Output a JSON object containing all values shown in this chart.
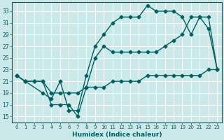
{
  "xlabel": "Humidex (Indice chaleur)",
  "xlim": [
    -0.5,
    23.5
  ],
  "ylim": [
    14,
    34.5
  ],
  "yticks": [
    15,
    17,
    19,
    21,
    23,
    25,
    27,
    29,
    31,
    33
  ],
  "xticks": [
    0,
    1,
    2,
    3,
    4,
    5,
    6,
    7,
    8,
    9,
    10,
    11,
    12,
    13,
    14,
    15,
    16,
    17,
    18,
    19,
    20,
    21,
    22,
    23
  ],
  "bg_color": "#cce9e9",
  "line_color": "#006060",
  "line1_x": [
    0,
    1,
    3,
    4,
    5,
    6,
    7,
    8,
    9,
    10,
    11,
    12,
    13,
    14,
    15,
    16,
    17,
    18,
    19,
    20,
    21,
    22,
    23
  ],
  "line1_y": [
    22,
    21,
    19,
    18,
    21,
    16,
    16,
    22,
    27,
    29,
    31,
    32,
    32,
    32,
    34,
    33,
    33,
    33,
    32,
    29,
    32,
    30,
    23
  ],
  "line2_x": [
    0,
    1,
    2,
    3,
    4,
    5,
    6,
    7,
    8,
    9,
    10,
    11,
    12,
    13,
    14,
    15,
    16,
    17,
    18,
    19,
    20,
    21,
    22,
    23
  ],
  "line2_y": [
    22,
    21,
    21,
    21,
    17,
    17,
    17,
    15,
    20,
    25,
    27,
    26,
    26,
    26,
    26,
    26,
    26,
    27,
    28,
    29,
    32,
    32,
    32,
    23
  ],
  "line3_x": [
    0,
    1,
    2,
    3,
    4,
    5,
    6,
    7,
    8,
    9,
    10,
    11,
    12,
    13,
    14,
    15,
    16,
    17,
    18,
    19,
    20,
    21,
    22,
    23
  ],
  "line3_y": [
    22,
    21,
    21,
    21,
    19,
    19,
    19,
    19,
    20,
    20,
    20,
    21,
    21,
    21,
    21,
    22,
    22,
    22,
    22,
    22,
    22,
    22,
    23,
    23
  ],
  "marker": "D",
  "markersize": 2.5,
  "linewidth": 1.0
}
